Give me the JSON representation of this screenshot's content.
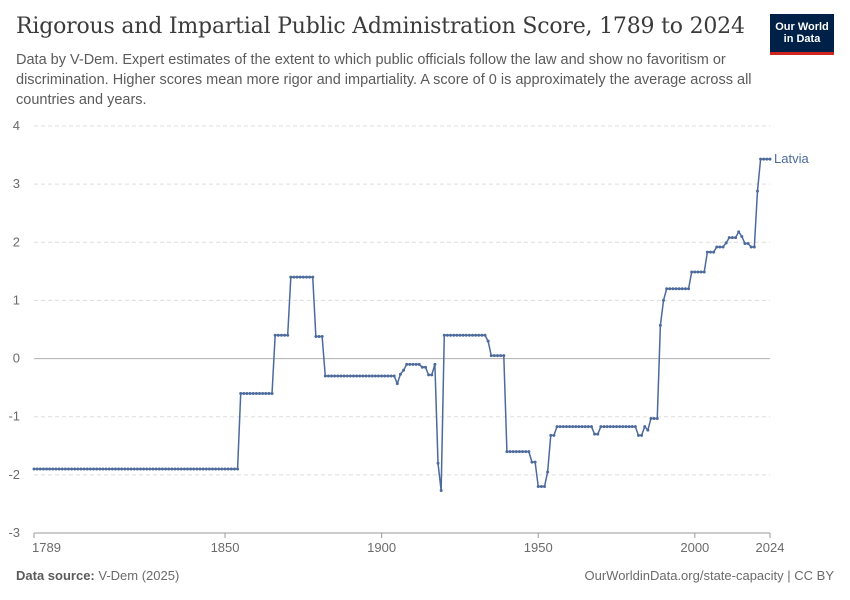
{
  "header": {
    "title": "Rigorous and Impartial Public Administration Score, 1789 to 2024",
    "subtitle": "Data by V-Dem. Expert estimates of the extent to which public officials follow the law and show no favoritism or discrimination. Higher scores mean more rigor and impartiality. A score of 0 is approximately the average across all countries and years.",
    "logo_text": "Our World in Data"
  },
  "footer": {
    "source_label": "Data source:",
    "source_value": "V-Dem (2025)",
    "url_license": "OurWorldinData.org/state-capacity | CC BY"
  },
  "colors": {
    "series": "#4c6a9c",
    "grid": "#dddddd",
    "zero_line": "#b0b0b0",
    "text": "#6b6b6b"
  },
  "chart_data": {
    "type": "line",
    "title": "Rigorous and Impartial Public Administration Score, 1789 to 2024",
    "xlabel": "",
    "ylabel": "",
    "xlim": [
      1789,
      2024
    ],
    "ylim": [
      -3,
      4
    ],
    "x_ticks": [
      "1789",
      "1850",
      "1900",
      "1950",
      "2000",
      "2024"
    ],
    "x_tick_values": [
      1789,
      1850,
      1900,
      1950,
      2000,
      2024
    ],
    "y_ticks": [
      "-3",
      "-2",
      "-1",
      "0",
      "1",
      "2",
      "3",
      "4"
    ],
    "y_tick_values": [
      -3,
      -2,
      -1,
      0,
      1,
      2,
      3,
      4
    ],
    "grid": true,
    "series": [
      {
        "name": "Latvia",
        "points": [
          [
            1789,
            -1.9
          ],
          [
            1854,
            -1.9
          ],
          [
            1855,
            -0.6
          ],
          [
            1865,
            -0.6
          ],
          [
            1866,
            0.4
          ],
          [
            1870,
            0.4
          ],
          [
            1871,
            1.4
          ],
          [
            1878,
            1.4
          ],
          [
            1879,
            0.38
          ],
          [
            1881,
            0.38
          ],
          [
            1882,
            -0.3
          ],
          [
            1894,
            -0.3
          ],
          [
            1900,
            -0.3
          ],
          [
            1904,
            -0.3
          ],
          [
            1905,
            -0.43
          ],
          [
            1906,
            -0.27
          ],
          [
            1907,
            -0.2
          ],
          [
            1908,
            -0.1
          ],
          [
            1912,
            -0.1
          ],
          [
            1913,
            -0.15
          ],
          [
            1914,
            -0.15
          ],
          [
            1915,
            -0.28
          ],
          [
            1916,
            -0.28
          ],
          [
            1917,
            -0.1
          ],
          [
            1918,
            -1.8
          ],
          [
            1919,
            -2.27
          ],
          [
            1920,
            0.4
          ],
          [
            1933,
            0.4
          ],
          [
            1934,
            0.3
          ],
          [
            1935,
            0.05
          ],
          [
            1939,
            0.05
          ],
          [
            1940,
            -1.6
          ],
          [
            1947,
            -1.6
          ],
          [
            1948,
            -1.78
          ],
          [
            1949,
            -1.78
          ],
          [
            1950,
            -2.2
          ],
          [
            1952,
            -2.2
          ],
          [
            1953,
            -1.95
          ],
          [
            1954,
            -1.32
          ],
          [
            1955,
            -1.32
          ],
          [
            1956,
            -1.17
          ],
          [
            1967,
            -1.17
          ],
          [
            1968,
            -1.3
          ],
          [
            1969,
            -1.3
          ],
          [
            1970,
            -1.17
          ],
          [
            1981,
            -1.17
          ],
          [
            1982,
            -1.32
          ],
          [
            1983,
            -1.32
          ],
          [
            1984,
            -1.17
          ],
          [
            1985,
            -1.23
          ],
          [
            1986,
            -1.03
          ],
          [
            1988,
            -1.03
          ],
          [
            1989,
            0.57
          ],
          [
            1990,
            1.0
          ],
          [
            1991,
            1.2
          ],
          [
            1998,
            1.2
          ],
          [
            1999,
            1.49
          ],
          [
            2003,
            1.49
          ],
          [
            2004,
            1.83
          ],
          [
            2006,
            1.83
          ],
          [
            2007,
            1.92
          ],
          [
            2009,
            1.92
          ],
          [
            2010,
            1.99
          ],
          [
            2011,
            2.08
          ],
          [
            2013,
            2.08
          ],
          [
            2014,
            2.18
          ],
          [
            2015,
            2.1
          ],
          [
            2016,
            1.98
          ],
          [
            2017,
            1.98
          ],
          [
            2018,
            1.92
          ],
          [
            2019,
            1.92
          ],
          [
            2020,
            2.88
          ],
          [
            2021,
            3.43
          ],
          [
            2024,
            3.43
          ]
        ]
      }
    ]
  }
}
